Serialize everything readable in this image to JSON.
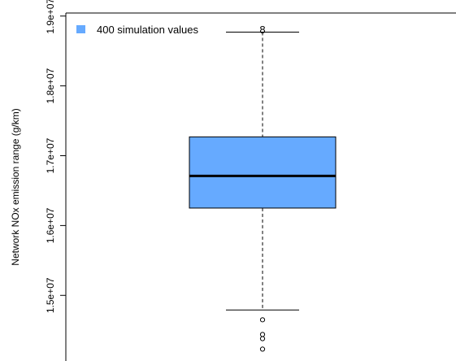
{
  "chart_data": {
    "type": "boxplot",
    "ylabel": "Network NOx emission range (g/km)",
    "ylim": [
      14060000,
      19230000
    ],
    "yticks": [
      {
        "value": 15000000,
        "label": "1.5e+07"
      },
      {
        "value": 16000000,
        "label": "1.6e+07"
      },
      {
        "value": 17000000,
        "label": "1.7e+07"
      },
      {
        "value": 18000000,
        "label": "1.8e+07"
      },
      {
        "value": 19000000,
        "label": "1.9e+07"
      }
    ],
    "legend": {
      "label": "400 simulation values",
      "placement": "top-left"
    },
    "top_label": "8",
    "box": {
      "whisker_low": 14790000,
      "q1": 16250000,
      "median": 16710000,
      "q3": 17270000,
      "whisker_high": 18770000,
      "outliers": [
        14650000,
        14440000,
        14380000,
        14230000
      ]
    },
    "colors": {
      "box_fill": "#66aaff",
      "line": "#000000"
    }
  }
}
